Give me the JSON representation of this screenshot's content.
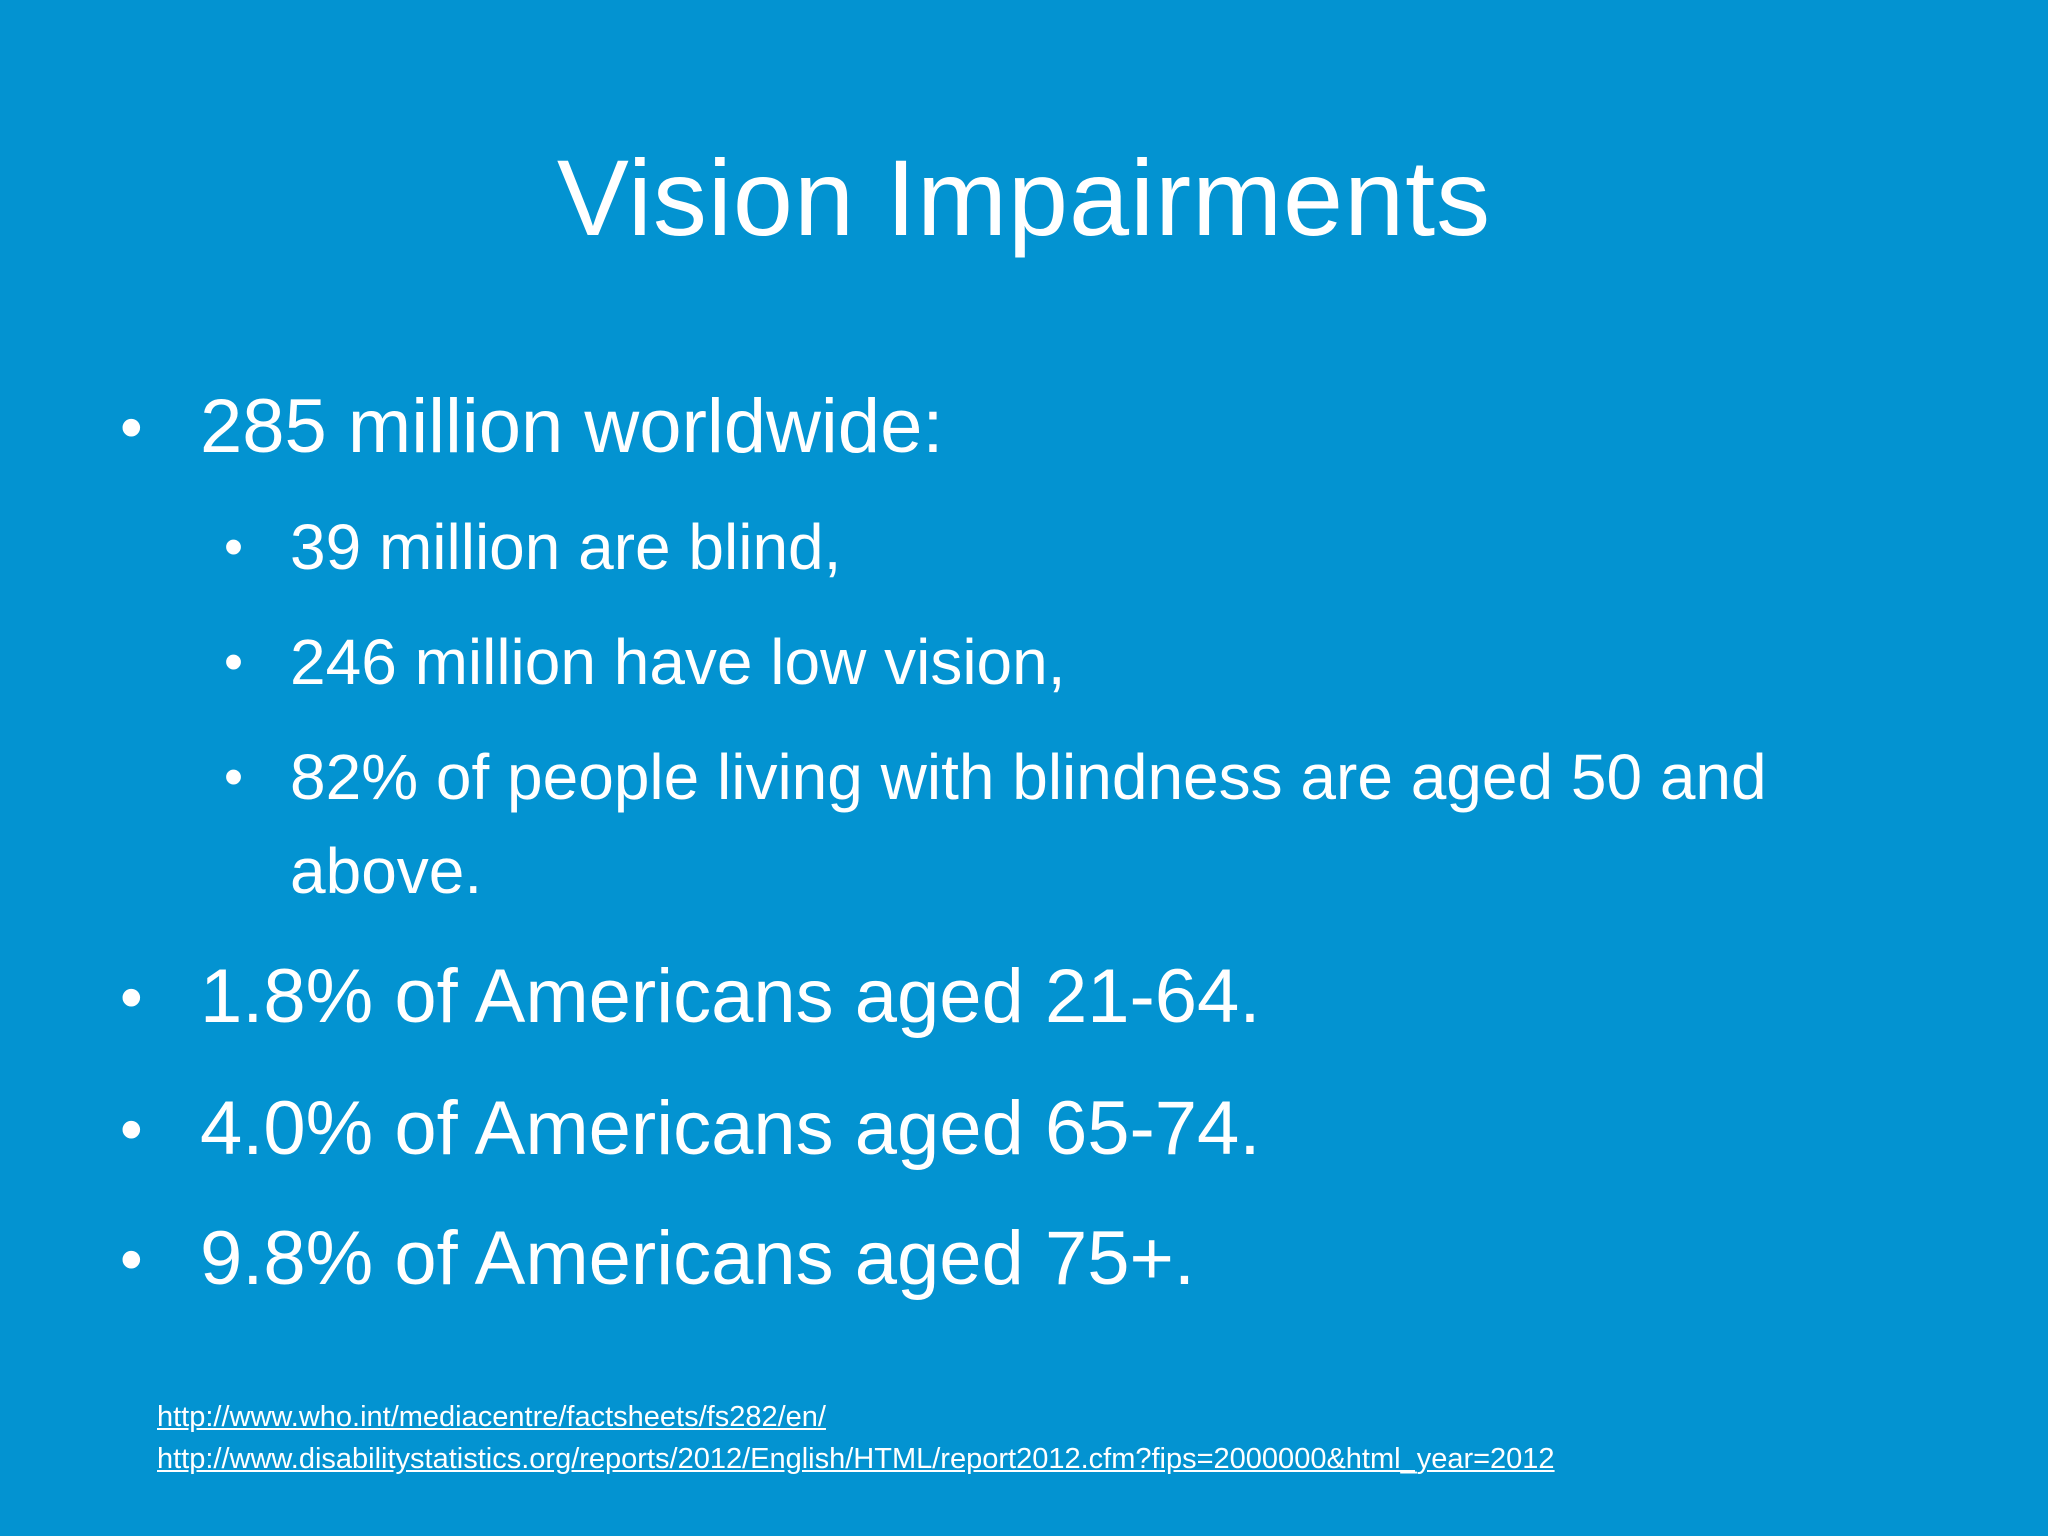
{
  "slide": {
    "title": "Vision Impairments",
    "bullets": [
      {
        "text": "285 million worldwide:"
      },
      {
        "text": "39 million are blind,"
      },
      {
        "text": "246 million have low vision,"
      },
      {
        "text": "82% of people living with blindness are aged 50 and above."
      },
      {
        "text": "1.8% of Americans aged 21-64."
      },
      {
        "text": "4.0% of Americans aged 65-74."
      },
      {
        "text": "9.8% of Americans aged 75+."
      }
    ],
    "bullet_glyph": "•",
    "references": [
      "http://www.who.int/mediacentre/factsheets/fs282/en/",
      "http://www.disabilitystatistics.org/reports/2012/English/HTML/report2012.cfm?fips=2000000&html_year=2012"
    ],
    "colors": {
      "background": "#0393d1",
      "text": "#ffffff"
    }
  }
}
